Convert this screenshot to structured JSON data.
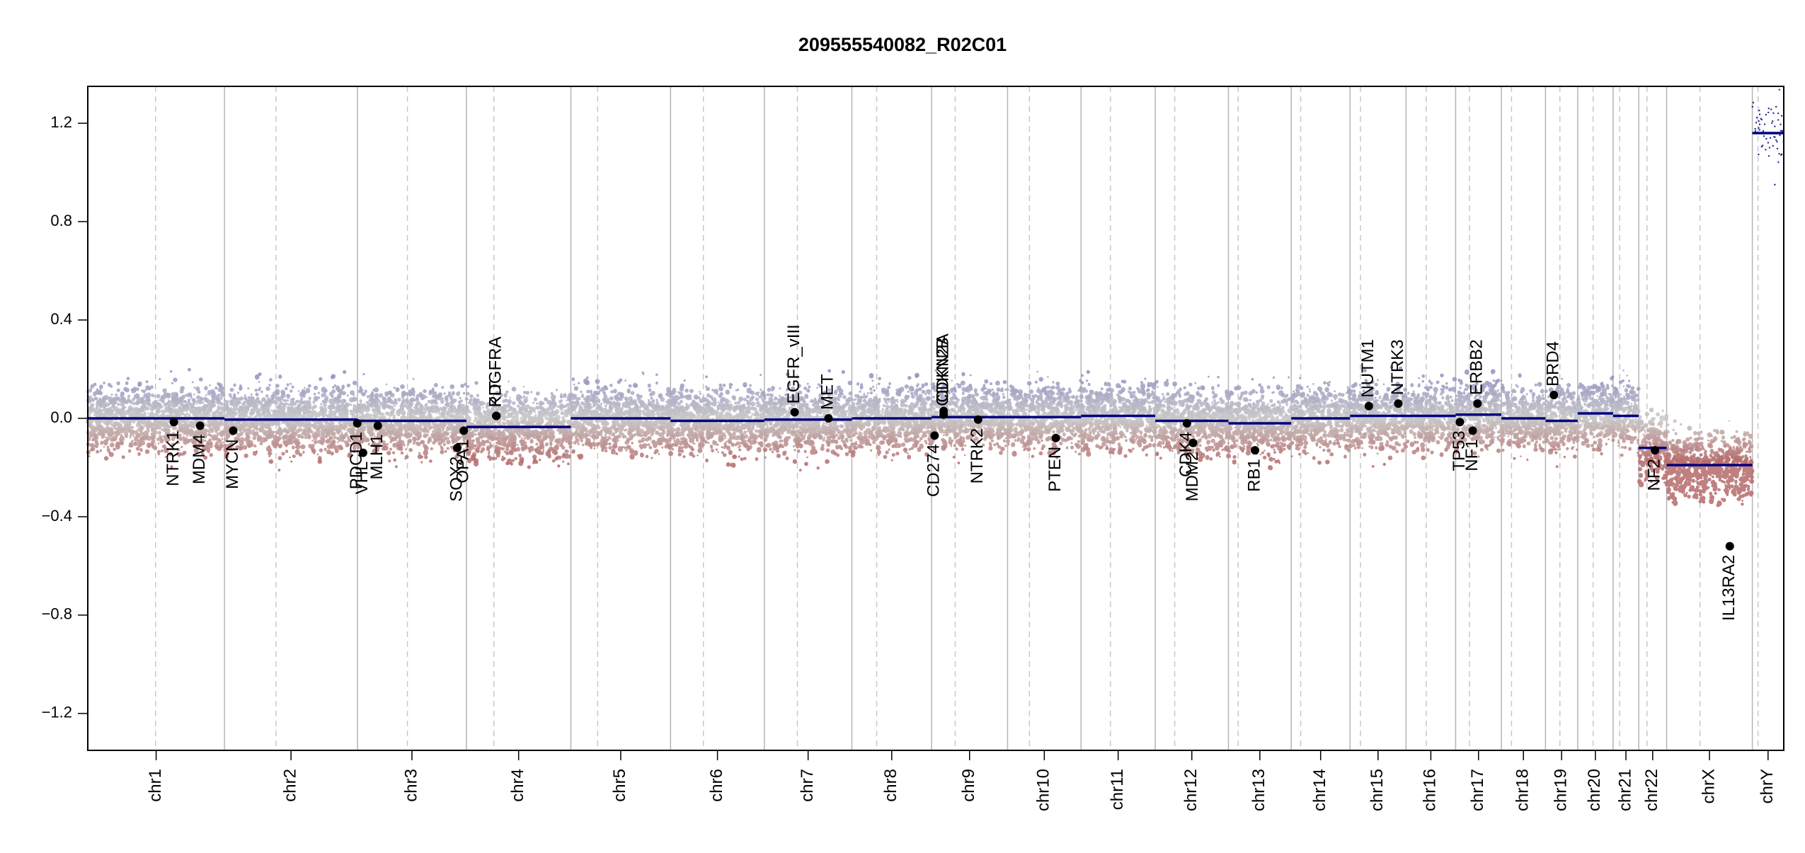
{
  "chart_data": {
    "type": "scatter",
    "title": "209555540082_R02C01",
    "xlabel": "",
    "ylabel": "",
    "ylim": [
      -1.35,
      1.35
    ],
    "yticks": [
      -1.2,
      -0.8,
      -0.4,
      0.0,
      0.4,
      0.8,
      1.2
    ],
    "ytick_labels": [
      "−1.2",
      "−0.8",
      "−0.4",
      "0.0",
      "0.4",
      "0.8",
      "1.2"
    ],
    "grid": false,
    "colors": {
      "segment": "#00007f",
      "gain_points": "#8f8fc0",
      "loss_points": "#b56a6a",
      "neutral_points": "#c8c8c8",
      "chrom_boundary": "#b4b4b4",
      "centromere": "#c8c8c8",
      "gene_marker": "#000000"
    },
    "chromosomes": [
      {
        "name": "chr1",
        "size": 248.96,
        "centromere": 123.4
      },
      {
        "name": "chr2",
        "size": 242.19,
        "centromere": 93.9
      },
      {
        "name": "chr3",
        "size": 198.3,
        "centromere": 90.9
      },
      {
        "name": "chr4",
        "size": 190.21,
        "centromere": 50.0
      },
      {
        "name": "chr5",
        "size": 181.54,
        "centromere": 48.8
      },
      {
        "name": "chr6",
        "size": 170.81,
        "centromere": 59.8
      },
      {
        "name": "chr7",
        "size": 159.35,
        "centromere": 60.1
      },
      {
        "name": "chr8",
        "size": 145.14,
        "centromere": 45.2
      },
      {
        "name": "chr9",
        "size": 138.39,
        "centromere": 43.0
      },
      {
        "name": "chr10",
        "size": 133.8,
        "centromere": 39.8
      },
      {
        "name": "chr11",
        "size": 135.09,
        "centromere": 53.4
      },
      {
        "name": "chr12",
        "size": 133.28,
        "centromere": 35.5
      },
      {
        "name": "chr13",
        "size": 114.36,
        "centromere": 17.7
      },
      {
        "name": "chr14",
        "size": 107.04,
        "centromere": 17.2
      },
      {
        "name": "chr15",
        "size": 101.99,
        "centromere": 19.0
      },
      {
        "name": "chr16",
        "size": 90.34,
        "centromere": 36.8
      },
      {
        "name": "chr17",
        "size": 83.26,
        "centromere": 25.1
      },
      {
        "name": "chr18",
        "size": 80.37,
        "centromere": 18.5
      },
      {
        "name": "chr19",
        "size": 58.62,
        "centromere": 26.2
      },
      {
        "name": "chr20",
        "size": 64.44,
        "centromere": 28.1
      },
      {
        "name": "chr21",
        "size": 46.71,
        "centromere": 12.0
      },
      {
        "name": "chr22",
        "size": 50.82,
        "centromere": 15.0
      },
      {
        "name": "chrX",
        "size": 156.04,
        "centromere": 60.6
      },
      {
        "name": "chrY",
        "size": 57.23,
        "centromere": 10.4
      }
    ],
    "segments": [
      {
        "chrom": "chr1",
        "start": 0,
        "end": 248.96,
        "value": 0.0
      },
      {
        "chrom": "chr2",
        "start": 0,
        "end": 242.19,
        "value": -0.005
      },
      {
        "chrom": "chr3",
        "start": 0,
        "end": 198.3,
        "value": -0.01
      },
      {
        "chrom": "chr4",
        "start": 0,
        "end": 190.21,
        "value": -0.035
      },
      {
        "chrom": "chr5",
        "start": 0,
        "end": 181.54,
        "value": 0.0
      },
      {
        "chrom": "chr6",
        "start": 0,
        "end": 170.81,
        "value": -0.01
      },
      {
        "chrom": "chr7",
        "start": 0,
        "end": 159.35,
        "value": -0.005
      },
      {
        "chrom": "chr8",
        "start": 0,
        "end": 145.14,
        "value": 0.0
      },
      {
        "chrom": "chr9",
        "start": 0,
        "end": 138.39,
        "value": 0.005
      },
      {
        "chrom": "chr10",
        "start": 0,
        "end": 133.8,
        "value": 0.005
      },
      {
        "chrom": "chr11",
        "start": 0,
        "end": 135.09,
        "value": 0.01
      },
      {
        "chrom": "chr12",
        "start": 0,
        "end": 133.28,
        "value": -0.01
      },
      {
        "chrom": "chr13",
        "start": 0,
        "end": 114.36,
        "value": -0.02
      },
      {
        "chrom": "chr14",
        "start": 0,
        "end": 107.04,
        "value": 0.0
      },
      {
        "chrom": "chr15",
        "start": 0,
        "end": 101.99,
        "value": 0.01
      },
      {
        "chrom": "chr16",
        "start": 0,
        "end": 90.34,
        "value": 0.01
      },
      {
        "chrom": "chr17",
        "start": 0,
        "end": 83.26,
        "value": 0.015
      },
      {
        "chrom": "chr18",
        "start": 0,
        "end": 80.37,
        "value": 0.0
      },
      {
        "chrom": "chr19",
        "start": 0,
        "end": 58.62,
        "value": -0.01
      },
      {
        "chrom": "chr20",
        "start": 0,
        "end": 64.44,
        "value": 0.02
      },
      {
        "chrom": "chr21",
        "start": 0,
        "end": 46.71,
        "value": 0.01
      },
      {
        "chrom": "chr22",
        "start": 0,
        "end": 50.82,
        "value": -0.12
      },
      {
        "chrom": "chrX",
        "start": 0,
        "end": 156.04,
        "value": -0.19
      },
      {
        "chrom": "chrY",
        "start": 0,
        "end": 57.23,
        "value": 1.16
      }
    ],
    "genes": [
      {
        "name": "NTRK1",
        "chrom": "chr1",
        "pos": 156.8,
        "value": -0.015
      },
      {
        "name": "MDM4",
        "chrom": "chr1",
        "pos": 204.5,
        "value": -0.03
      },
      {
        "name": "MYCN",
        "chrom": "chr2",
        "pos": 15.9,
        "value": -0.05
      },
      {
        "name": "PDCD1",
        "chrom": "chr2",
        "pos": 241.8,
        "value": -0.02
      },
      {
        "name": "VHL",
        "chrom": "chr3",
        "pos": 10.1,
        "value": -0.14
      },
      {
        "name": "MLH1",
        "chrom": "chr3",
        "pos": 37.0,
        "value": -0.03
      },
      {
        "name": "SOX2",
        "chrom": "chr3",
        "pos": 181.7,
        "value": -0.12
      },
      {
        "name": "OPA1",
        "chrom": "chr3",
        "pos": 193.6,
        "value": -0.05
      },
      {
        "name": "PDGFRA",
        "chrom": "chr4",
        "pos": 54.3,
        "value": 0.01
      },
      {
        "name": "KIT",
        "chrom": "chr4",
        "pos": 54.7,
        "value": 0.01
      },
      {
        "name": "EGFR_vIII",
        "chrom": "chr7",
        "pos": 55.1,
        "value": 0.025
      },
      {
        "name": "MET",
        "chrom": "chr7",
        "pos": 116.7,
        "value": 0.0
      },
      {
        "name": "CD274",
        "chrom": "chr9",
        "pos": 5.5,
        "value": -0.07
      },
      {
        "name": "CDKN2A",
        "chrom": "chr9",
        "pos": 21.97,
        "value": 0.03
      },
      {
        "name": "CDKN2B",
        "chrom": "chr9",
        "pos": 22.0,
        "value": 0.015
      },
      {
        "name": "NTRK2",
        "chrom": "chr9",
        "pos": 84.7,
        "value": -0.005
      },
      {
        "name": "PTEN",
        "chrom": "chr10",
        "pos": 87.9,
        "value": -0.08
      },
      {
        "name": "CDK4",
        "chrom": "chr12",
        "pos": 57.7,
        "value": -0.02
      },
      {
        "name": "MDM2",
        "chrom": "chr12",
        "pos": 68.8,
        "value": -0.1
      },
      {
        "name": "RB1",
        "chrom": "chr13",
        "pos": 48.4,
        "value": -0.13
      },
      {
        "name": "NUTM1",
        "chrom": "chr15",
        "pos": 34.3,
        "value": 0.05
      },
      {
        "name": "NTRK3",
        "chrom": "chr15",
        "pos": 87.9,
        "value": 0.06
      },
      {
        "name": "TP53",
        "chrom": "chr17",
        "pos": 7.7,
        "value": -0.015
      },
      {
        "name": "NF1",
        "chrom": "chr17",
        "pos": 31.1,
        "value": -0.05
      },
      {
        "name": "ERBB2",
        "chrom": "chr17",
        "pos": 39.7,
        "value": 0.06
      },
      {
        "name": "BRD4",
        "chrom": "chr19",
        "pos": 15.2,
        "value": 0.095
      },
      {
        "name": "NF2",
        "chrom": "chr22",
        "pos": 29.6,
        "value": -0.13
      },
      {
        "name": "IL13RA2",
        "chrom": "chrX",
        "pos": 115.0,
        "value": -0.52
      }
    ]
  }
}
